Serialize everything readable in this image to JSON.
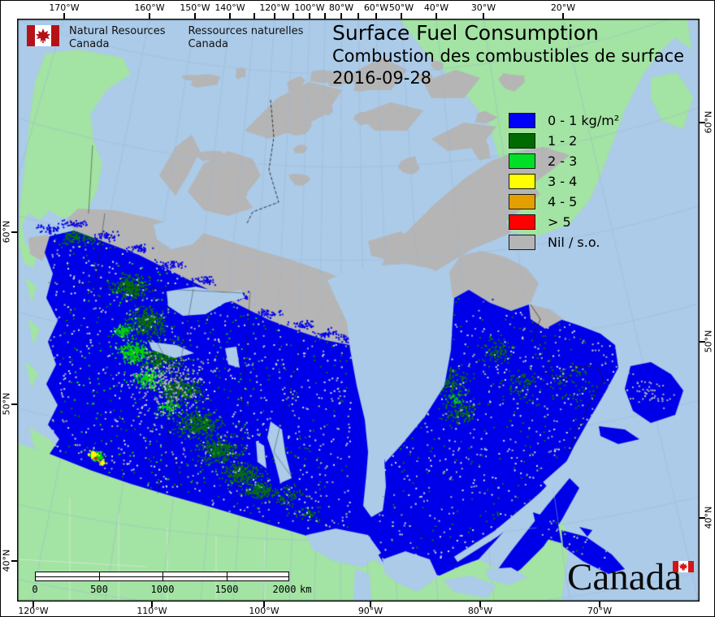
{
  "logo": {
    "en_line1": "Natural Resources",
    "en_line2": "Canada",
    "fr_line1": "Ressources naturelles",
    "fr_line2": "Canada"
  },
  "title": {
    "line1": "Surface Fuel Consumption",
    "line2": "Combustion des combustibles de surface",
    "date": "2016-09-28"
  },
  "legend": {
    "items": [
      {
        "label": "0 - 1 kg/m²",
        "color": "#0000FA"
      },
      {
        "label": "1 - 2",
        "color": "#006B00"
      },
      {
        "label": "2 - 3",
        "color": "#00DF25"
      },
      {
        "label": "3 - 4",
        "color": "#FFFF00"
      },
      {
        "label": "4 - 5",
        "color": "#E39E00"
      },
      {
        "label": "> 5",
        "color": "#FF0000"
      },
      {
        "label": "Nil / s.o.",
        "color": "#B5B5B5"
      }
    ]
  },
  "scalebar": {
    "labels": [
      "0",
      "500",
      "1000",
      "1500",
      "2000"
    ],
    "unit": "km"
  },
  "axes": {
    "top": [
      "170°W",
      "160°W",
      "150°W",
      "140°W",
      "120°W",
      "100°W",
      "80°W",
      "60°W",
      "50°W",
      "40°W",
      "30°W",
      "20°W"
    ],
    "bottom": [
      "120°W",
      "110°W",
      "100°W",
      "90°W",
      "80°W",
      "70°W"
    ],
    "left": [
      "60°N",
      "50°N",
      "40°N"
    ],
    "right": [
      "60°N",
      "50°N",
      "40°N"
    ]
  },
  "wordmark": {
    "text": "Canada"
  },
  "map_colors": {
    "ocean": "#ABCBE9",
    "land": "#A3E3A3",
    "nil": "#B5B5B5",
    "fuel_0_1": "#0000E8",
    "fuel_1_2": "#077307",
    "fuel_2_3": "#00D900",
    "fuel_3_4": "#FFFF00",
    "fuel_4_5": "#E6A000",
    "fuel_gt5": "#FF0000",
    "graticule": "#9DB7D6",
    "boundary": "#1A1A1A",
    "state_line": "#CFECCF",
    "speck_white": "#D8E6F4",
    "flag_red": "#B51218"
  }
}
